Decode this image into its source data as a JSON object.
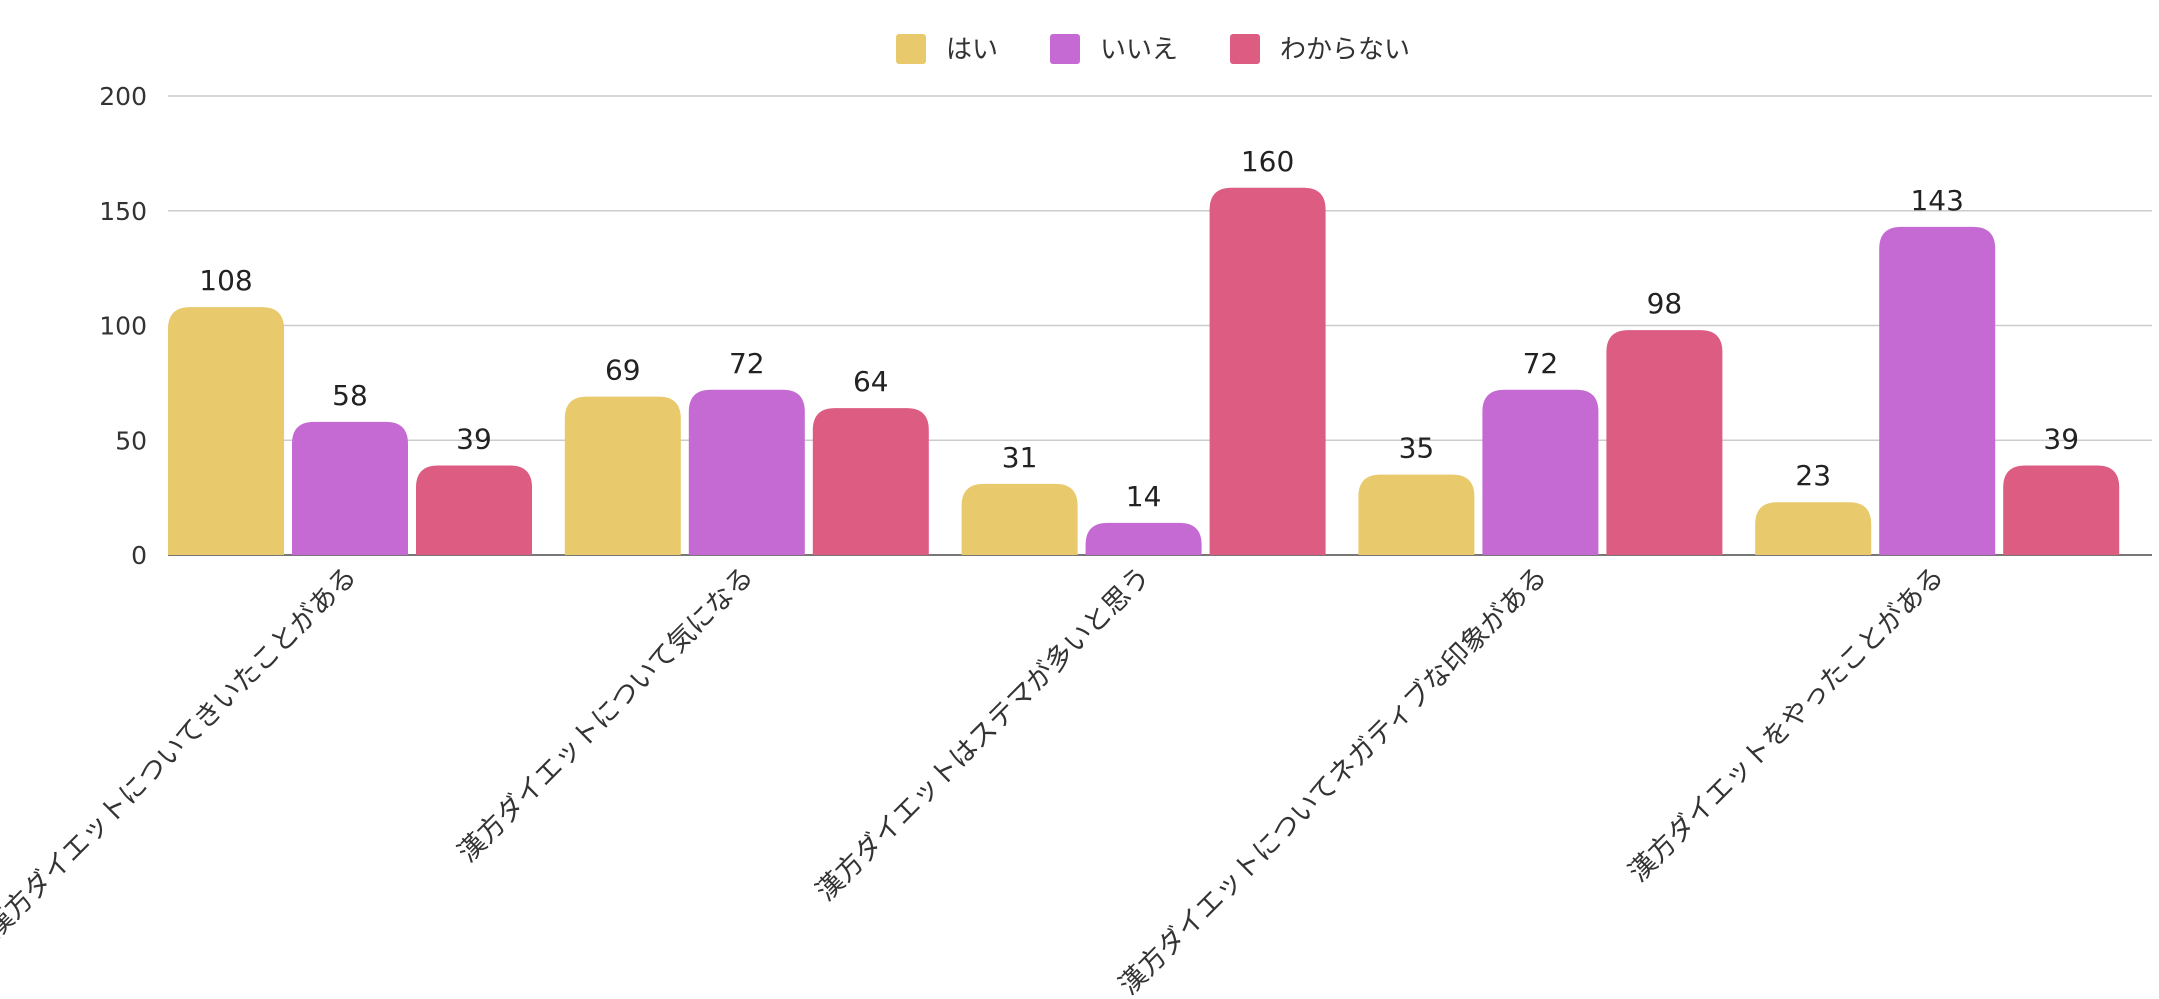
{
  "chart_data": {
    "type": "bar",
    "title": "",
    "xlabel": "",
    "ylabel": "",
    "ylim": [
      0,
      200
    ],
    "yticks": [
      0,
      50,
      100,
      150,
      200
    ],
    "grid": true,
    "legend_position": "top-center",
    "categories": [
      "漢方ダイエットについてきいたことがある",
      "漢方ダイエットについて気になる",
      "漢方ダイエットはステマが多いと思う",
      "漢方ダイエットについてネガティブな印象がある",
      "漢方ダイエットをやったことがある"
    ],
    "series": [
      {
        "name": "はい",
        "color": "#e8c96b",
        "values": [
          108,
          69,
          31,
          35,
          23
        ]
      },
      {
        "name": "いいえ",
        "color": "#c56ad3",
        "values": [
          58,
          72,
          14,
          72,
          143
        ]
      },
      {
        "name": "わからない",
        "color": "#dc5c82",
        "values": [
          39,
          64,
          160,
          98,
          39
        ]
      }
    ]
  }
}
